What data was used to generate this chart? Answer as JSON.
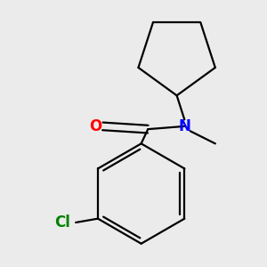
{
  "background_color": "#ebebeb",
  "bond_color": "#000000",
  "O_color": "#ff0000",
  "N_color": "#0000ff",
  "Cl_color": "#008000",
  "line_width": 1.6,
  "figsize": [
    3.0,
    3.0
  ],
  "dpi": 100,
  "xlim": [
    20,
    260
  ],
  "ylim": [
    10,
    285
  ]
}
